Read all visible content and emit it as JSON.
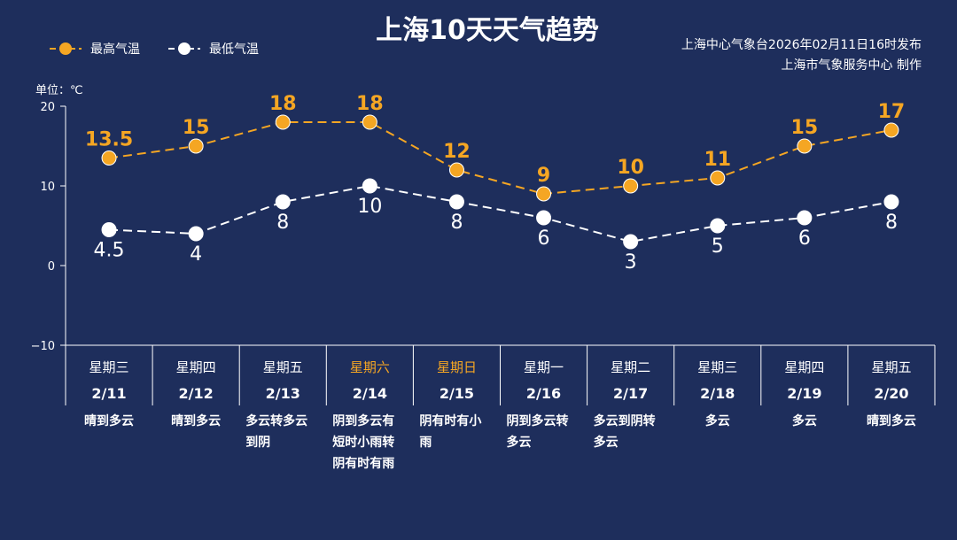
{
  "header": {
    "title": "上海10天天气趋势",
    "source_line1": "上海中心气象台2026年02月11日16时发布",
    "source_line2": "上海市气象服务中心 制作"
  },
  "legend": {
    "high": "最高气温",
    "low": "最低气温"
  },
  "chart_data": {
    "type": "line",
    "ylabel": "单位：℃",
    "ylim": [
      -10,
      20
    ],
    "yticks": [
      "20",
      "10",
      "0",
      "−10"
    ],
    "colors": {
      "high": "#f5a623",
      "low": "#ffffff",
      "background": "#1e2e5c"
    },
    "days": [
      {
        "weekday": "星期三",
        "date": "2/11",
        "weather": [
          "晴到多云"
        ],
        "weekend": false
      },
      {
        "weekday": "星期四",
        "date": "2/12",
        "weather": [
          "晴到多云"
        ],
        "weekend": false
      },
      {
        "weekday": "星期五",
        "date": "2/13",
        "weather": [
          "多云转多云",
          "到阴"
        ],
        "weekend": false
      },
      {
        "weekday": "星期六",
        "date": "2/14",
        "weather": [
          "阴到多云有",
          "短时小雨转",
          "阴有时有雨"
        ],
        "weekend": true
      },
      {
        "weekday": "星期日",
        "date": "2/15",
        "weather": [
          "阴有时有小",
          "雨"
        ],
        "weekend": true
      },
      {
        "weekday": "星期一",
        "date": "2/16",
        "weather": [
          "阴到多云转",
          "多云"
        ],
        "weekend": false
      },
      {
        "weekday": "星期二",
        "date": "2/17",
        "weather": [
          "多云到阴转",
          "多云"
        ],
        "weekend": false
      },
      {
        "weekday": "星期三",
        "date": "2/18",
        "weather": [
          "多云"
        ],
        "weekend": false
      },
      {
        "weekday": "星期四",
        "date": "2/19",
        "weather": [
          "多云"
        ],
        "weekend": false
      },
      {
        "weekday": "星期五",
        "date": "2/20",
        "weather": [
          "晴到多云"
        ],
        "weekend": false
      }
    ],
    "series": [
      {
        "name": "最高气温",
        "values": [
          13.5,
          15,
          18,
          18,
          12,
          9,
          10,
          11,
          15,
          17
        ],
        "labels": [
          "13.5",
          "15",
          "18",
          "18",
          "12",
          "9",
          "10",
          "11",
          "15",
          "17"
        ]
      },
      {
        "name": "最低气温",
        "values": [
          4.5,
          4,
          8,
          10,
          8,
          6,
          3,
          5,
          6,
          8
        ],
        "labels": [
          "4.5",
          "4",
          "8",
          "10",
          "8",
          "6",
          "3",
          "5",
          "6",
          "8"
        ]
      }
    ]
  }
}
